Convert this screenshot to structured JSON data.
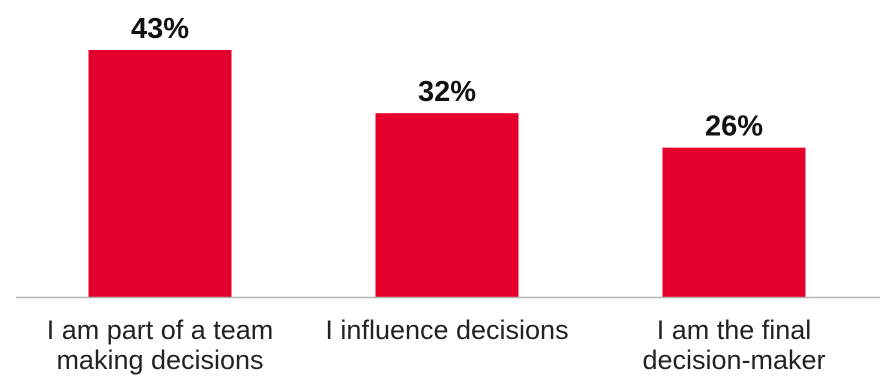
{
  "chart_data": {
    "type": "bar",
    "categories": [
      [
        "I am part of a team",
        "making decisions"
      ],
      [
        "I influence decisions"
      ],
      [
        "I am the final",
        "decision-maker"
      ]
    ],
    "values": [
      43,
      32,
      26
    ],
    "value_labels": [
      "43%",
      "32%",
      "26%"
    ],
    "title": "",
    "xlabel": "",
    "ylabel": "",
    "ylim": [
      0,
      43
    ],
    "grid": false,
    "legend": "none",
    "colors": {
      "bar": "#E4002B",
      "axis": "#B3B3B3",
      "value_text": "#111111",
      "category_text": "#222222"
    }
  }
}
